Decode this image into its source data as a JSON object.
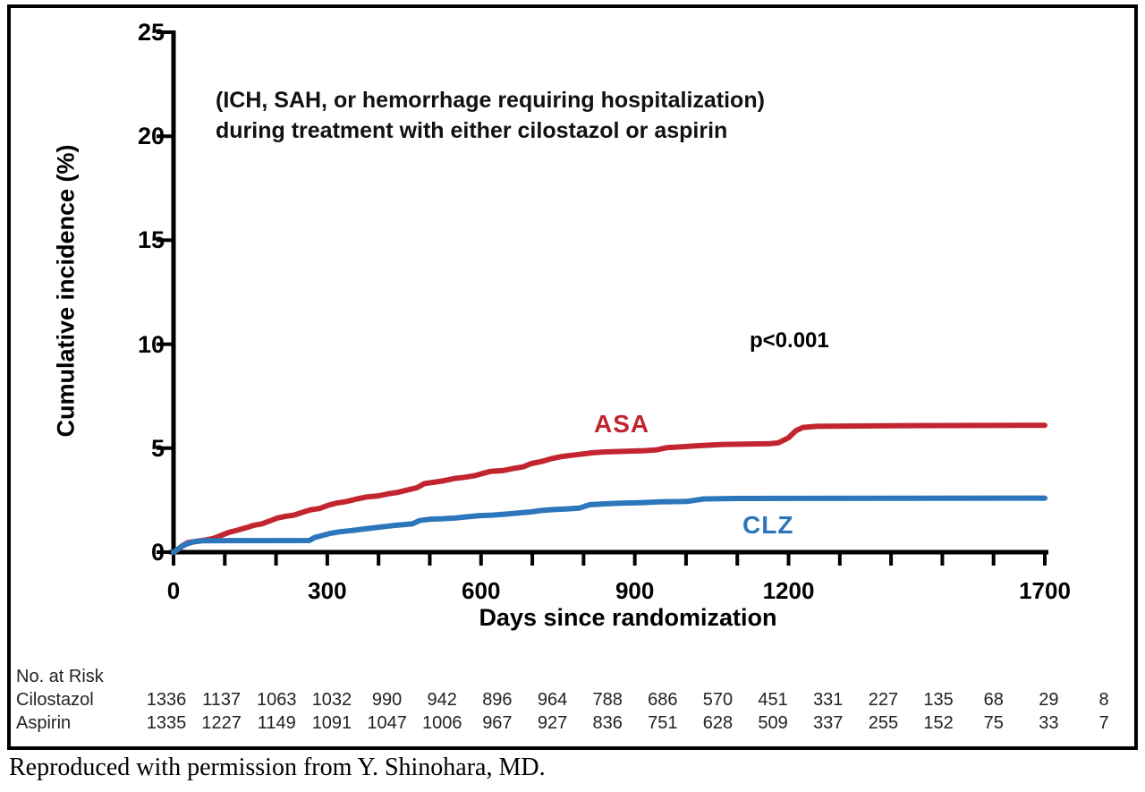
{
  "figure": {
    "annotation_line1": "(ICH, SAH, or hemorrhage requiring hospitalization)",
    "annotation_line2": "during treatment with either cilostazol or aspirin",
    "p_value": "p<0.001",
    "caption": "Reproduced with permission from Y. Shinohara, MD."
  },
  "chart_data": {
    "type": "line",
    "subtype": "cumulative-incidence-step-curves",
    "title": "",
    "xlabel": "Days since randomization",
    "ylabel": "Cumulative incidence (%)",
    "xlim": [
      0,
      1700
    ],
    "ylim": [
      0,
      25
    ],
    "x_tick_interval": 100,
    "x_tick_labels": [
      0,
      300,
      600,
      900,
      1200,
      1700
    ],
    "y_ticks": [
      0,
      5,
      10,
      15,
      20,
      25
    ],
    "grid": false,
    "legend_position": "inline-labels",
    "axis_color": "#000000",
    "series": [
      {
        "name": "ASA",
        "label": "ASA",
        "color": "#c2252f",
        "points": [
          [
            0,
            0
          ],
          [
            8,
            0.12
          ],
          [
            18,
            0.32
          ],
          [
            28,
            0.46
          ],
          [
            45,
            0.52
          ],
          [
            62,
            0.58
          ],
          [
            78,
            0.66
          ],
          [
            92,
            0.8
          ],
          [
            108,
            0.95
          ],
          [
            125,
            1.06
          ],
          [
            142,
            1.18
          ],
          [
            158,
            1.3
          ],
          [
            172,
            1.36
          ],
          [
            188,
            1.5
          ],
          [
            202,
            1.64
          ],
          [
            218,
            1.72
          ],
          [
            235,
            1.78
          ],
          [
            252,
            1.92
          ],
          [
            268,
            2.04
          ],
          [
            285,
            2.1
          ],
          [
            300,
            2.24
          ],
          [
            318,
            2.36
          ],
          [
            338,
            2.44
          ],
          [
            358,
            2.56
          ],
          [
            378,
            2.66
          ],
          [
            398,
            2.7
          ],
          [
            418,
            2.8
          ],
          [
            438,
            2.88
          ],
          [
            458,
            3.0
          ],
          [
            475,
            3.1
          ],
          [
            490,
            3.3
          ],
          [
            508,
            3.36
          ],
          [
            528,
            3.44
          ],
          [
            548,
            3.54
          ],
          [
            568,
            3.6
          ],
          [
            588,
            3.68
          ],
          [
            602,
            3.78
          ],
          [
            618,
            3.88
          ],
          [
            642,
            3.92
          ],
          [
            662,
            4.02
          ],
          [
            682,
            4.1
          ],
          [
            698,
            4.26
          ],
          [
            718,
            4.36
          ],
          [
            738,
            4.5
          ],
          [
            758,
            4.6
          ],
          [
            778,
            4.66
          ],
          [
            798,
            4.72
          ],
          [
            818,
            4.78
          ],
          [
            842,
            4.82
          ],
          [
            882,
            4.85
          ],
          [
            918,
            4.88
          ],
          [
            942,
            4.92
          ],
          [
            962,
            5.02
          ],
          [
            988,
            5.06
          ],
          [
            1012,
            5.1
          ],
          [
            1042,
            5.14
          ],
          [
            1072,
            5.18
          ],
          [
            1115,
            5.2
          ],
          [
            1165,
            5.22
          ],
          [
            1180,
            5.26
          ],
          [
            1200,
            5.5
          ],
          [
            1214,
            5.84
          ],
          [
            1228,
            6.0
          ],
          [
            1255,
            6.05
          ],
          [
            1400,
            6.08
          ],
          [
            1700,
            6.1
          ]
        ]
      },
      {
        "name": "CLZ",
        "label": "CLZ",
        "color": "#2c76bb",
        "points": [
          [
            0,
            0
          ],
          [
            6,
            0.1
          ],
          [
            15,
            0.26
          ],
          [
            26,
            0.4
          ],
          [
            40,
            0.5
          ],
          [
            58,
            0.55
          ],
          [
            265,
            0.56
          ],
          [
            275,
            0.7
          ],
          [
            290,
            0.8
          ],
          [
            305,
            0.9
          ],
          [
            325,
            0.98
          ],
          [
            348,
            1.04
          ],
          [
            368,
            1.1
          ],
          [
            388,
            1.16
          ],
          [
            408,
            1.22
          ],
          [
            428,
            1.28
          ],
          [
            448,
            1.32
          ],
          [
            466,
            1.36
          ],
          [
            480,
            1.52
          ],
          [
            498,
            1.58
          ],
          [
            522,
            1.6
          ],
          [
            548,
            1.64
          ],
          [
            572,
            1.7
          ],
          [
            596,
            1.75
          ],
          [
            622,
            1.78
          ],
          [
            648,
            1.83
          ],
          [
            672,
            1.88
          ],
          [
            696,
            1.93
          ],
          [
            716,
            2.0
          ],
          [
            742,
            2.05
          ],
          [
            766,
            2.08
          ],
          [
            792,
            2.12
          ],
          [
            812,
            2.28
          ],
          [
            838,
            2.32
          ],
          [
            872,
            2.36
          ],
          [
            912,
            2.38
          ],
          [
            948,
            2.42
          ],
          [
            1002,
            2.44
          ],
          [
            1035,
            2.56
          ],
          [
            1100,
            2.58
          ],
          [
            1400,
            2.59
          ],
          [
            1700,
            2.6
          ]
        ]
      }
    ],
    "annotations": [
      {
        "text": "(ICH, SAH, or hemorrhage requiring hospitalization)",
        "x": 150,
        "y": 22.3
      },
      {
        "text": "during treatment with either cilostazol or aspirin",
        "x": 150,
        "y": 20.9
      },
      {
        "text": "p<0.001",
        "x": 1130,
        "y": 10.0
      },
      {
        "text": "ASA",
        "x": 820,
        "y": 6.1,
        "color": "#c2252f"
      },
      {
        "text": "CLZ",
        "x": 1110,
        "y": 1.6,
        "color": "#2c76bb"
      }
    ]
  },
  "risk_table": {
    "header": "No. at Risk",
    "days": [
      0,
      100,
      200,
      300,
      400,
      500,
      600,
      700,
      800,
      900,
      1000,
      1100,
      1200,
      1300,
      1400,
      1500,
      1600,
      1700
    ],
    "rows": [
      {
        "label": "Cilostazol",
        "values": [
          "1336",
          "1137",
          "1063",
          "1032",
          "990",
          "942",
          "896",
          "964",
          "788",
          "686",
          "570",
          "451",
          "331",
          "227",
          "135",
          "68",
          "29",
          "8"
        ]
      },
      {
        "label": "Aspirin",
        "values": [
          "1335",
          "1227",
          "1149",
          "1091",
          "1047",
          "1006",
          "967",
          "927",
          "836",
          "751",
          "628",
          "509",
          "337",
          "255",
          "152",
          "75",
          "33",
          "7"
        ]
      }
    ]
  }
}
